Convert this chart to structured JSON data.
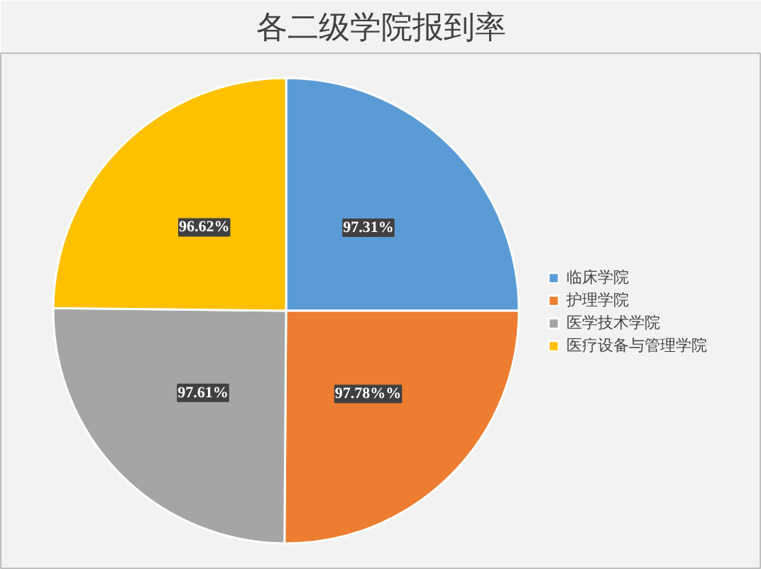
{
  "chart_data": {
    "type": "pie",
    "title": "各二级学院报到率",
    "categories": [
      "临床学院",
      "护理学院",
      "医学技术学院",
      "医疗设备与管理学院"
    ],
    "values": [
      97.31,
      97.78,
      97.61,
      96.62
    ],
    "value_labels": [
      "97.31%",
      "97.78%%",
      "97.61%",
      "96.62%"
    ],
    "colors": [
      "#5b9bd5",
      "#ed7d31",
      "#a5a5a5",
      "#ffc000"
    ],
    "legend": "right"
  }
}
